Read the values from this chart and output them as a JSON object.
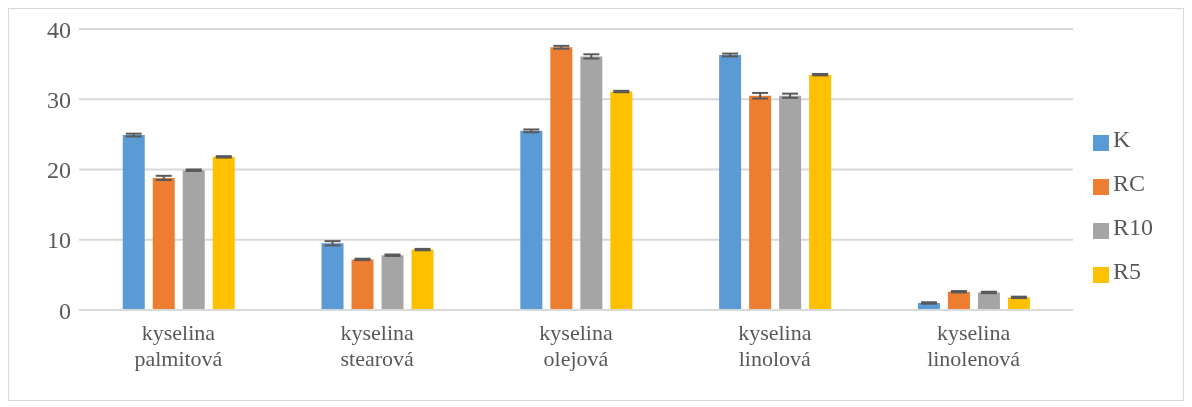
{
  "chart_data": {
    "type": "bar",
    "categories": [
      "kyselina palmitová",
      "kyselina stearová",
      "kyselina olejová",
      "kyselina linolová",
      "kyselina linolenová"
    ],
    "series": [
      {
        "name": "K",
        "color": "#5b9bd5",
        "values": [
          24.9,
          9.5,
          25.5,
          36.3,
          1.0
        ],
        "errors": [
          0.2,
          0.3,
          0.2,
          0.2,
          0.1
        ]
      },
      {
        "name": "RC",
        "color": "#ed7d31",
        "values": [
          18.8,
          7.2,
          37.4,
          30.5,
          2.6
        ],
        "errors": [
          0.3,
          0.1,
          0.2,
          0.4,
          0.1
        ]
      },
      {
        "name": "R10",
        "color": "#a5a5a5",
        "values": [
          19.9,
          7.8,
          36.1,
          30.5,
          2.5
        ],
        "errors": [
          0.1,
          0.1,
          0.3,
          0.3,
          0.1
        ]
      },
      {
        "name": "R5",
        "color": "#ffc000",
        "values": [
          21.8,
          8.6,
          31.1,
          33.5,
          1.8
        ],
        "errors": [
          0.1,
          0.1,
          0.1,
          0.1,
          0.1
        ]
      }
    ],
    "ylim": [
      0,
      40
    ],
    "yticks": [
      0,
      10,
      20,
      30,
      40
    ],
    "grid": "y",
    "legend": "right"
  }
}
